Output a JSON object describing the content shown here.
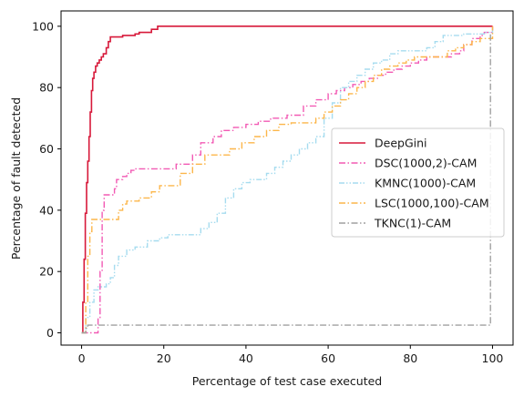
{
  "chart_data": {
    "type": "line",
    "xlabel": "Percentage of test case executed",
    "ylabel": "Percentage of fault detected",
    "xlim": [
      -5,
      105
    ],
    "ylim": [
      -4,
      105
    ],
    "xticks": [
      0,
      20,
      40,
      60,
      80,
      100
    ],
    "yticks": [
      0,
      20,
      40,
      60,
      80,
      100
    ],
    "grid": false,
    "legend_position": "center-right",
    "series": [
      {
        "name": "DeepGini",
        "color": "#d7193a",
        "dash": "solid",
        "points": [
          [
            0,
            0
          ],
          [
            0.3,
            10
          ],
          [
            0.6,
            24
          ],
          [
            0.9,
            39
          ],
          [
            1.2,
            49
          ],
          [
            1.5,
            56
          ],
          [
            1.8,
            64
          ],
          [
            2.1,
            72
          ],
          [
            2.4,
            79
          ],
          [
            2.7,
            83
          ],
          [
            3,
            85
          ],
          [
            3.4,
            87
          ],
          [
            3.8,
            88
          ],
          [
            4.3,
            89
          ],
          [
            4.8,
            90
          ],
          [
            5.3,
            91
          ],
          [
            6,
            93
          ],
          [
            6.5,
            95
          ],
          [
            7,
            96.5
          ],
          [
            9.5,
            96.5
          ],
          [
            10,
            97
          ],
          [
            13,
            97.5
          ],
          [
            14,
            98
          ],
          [
            17,
            99
          ],
          [
            18.5,
            100
          ],
          [
            100,
            100
          ]
        ]
      },
      {
        "name": "DSC(1000,2)-CAM",
        "color": "#f25ab4",
        "dash": "dashdot",
        "points": [
          [
            0,
            0
          ],
          [
            3.5,
            0
          ],
          [
            4,
            5
          ],
          [
            4.5,
            20
          ],
          [
            5,
            40
          ],
          [
            5.5,
            45
          ],
          [
            7,
            45
          ],
          [
            8,
            47
          ],
          [
            8.5,
            50
          ],
          [
            10,
            51
          ],
          [
            11,
            52
          ],
          [
            12,
            53
          ],
          [
            13,
            53.5
          ],
          [
            22,
            53.5
          ],
          [
            23,
            55
          ],
          [
            25,
            55
          ],
          [
            27,
            58
          ],
          [
            29,
            62
          ],
          [
            32,
            64
          ],
          [
            34,
            66
          ],
          [
            37,
            67
          ],
          [
            40,
            68
          ],
          [
            43,
            69
          ],
          [
            46,
            70
          ],
          [
            50,
            71
          ],
          [
            54,
            74
          ],
          [
            57,
            76
          ],
          [
            60,
            78
          ],
          [
            62,
            79
          ],
          [
            64,
            80
          ],
          [
            66,
            81
          ],
          [
            68,
            82
          ],
          [
            70,
            83
          ],
          [
            72,
            84
          ],
          [
            74,
            85
          ],
          [
            76,
            86
          ],
          [
            78,
            87
          ],
          [
            80,
            88
          ],
          [
            82,
            89
          ],
          [
            84,
            90
          ],
          [
            88,
            90
          ],
          [
            90,
            91
          ],
          [
            92,
            92
          ],
          [
            93,
            94
          ],
          [
            95,
            96
          ],
          [
            97,
            97
          ],
          [
            98,
            98
          ],
          [
            100,
            100
          ]
        ]
      },
      {
        "name": "KMNC(1000)-CAM",
        "color": "#a6dcef",
        "dash": "dashdotdot",
        "points": [
          [
            0,
            0
          ],
          [
            1,
            5
          ],
          [
            2,
            10
          ],
          [
            3,
            14
          ],
          [
            4,
            15
          ],
          [
            6,
            16
          ],
          [
            7,
            18
          ],
          [
            8,
            22
          ],
          [
            9,
            25
          ],
          [
            11,
            27
          ],
          [
            13,
            28
          ],
          [
            16,
            30
          ],
          [
            19,
            31
          ],
          [
            21,
            32
          ],
          [
            27,
            32
          ],
          [
            29,
            34
          ],
          [
            31,
            36
          ],
          [
            33,
            39
          ],
          [
            35,
            44
          ],
          [
            37,
            47
          ],
          [
            39,
            49
          ],
          [
            41,
            50
          ],
          [
            45,
            52
          ],
          [
            47,
            54
          ],
          [
            49,
            56
          ],
          [
            51,
            58
          ],
          [
            53,
            60
          ],
          [
            55,
            62
          ],
          [
            57,
            64
          ],
          [
            59,
            70
          ],
          [
            61,
            75
          ],
          [
            63,
            80
          ],
          [
            65,
            82
          ],
          [
            67,
            84
          ],
          [
            69,
            86
          ],
          [
            71,
            88
          ],
          [
            73,
            89
          ],
          [
            75,
            91
          ],
          [
            77,
            92
          ],
          [
            82,
            92
          ],
          [
            84,
            93
          ],
          [
            86,
            95
          ],
          [
            88,
            97
          ],
          [
            93,
            97.5
          ],
          [
            97,
            97.5
          ],
          [
            98,
            98
          ],
          [
            100,
            100
          ]
        ]
      },
      {
        "name": "LSC(1000,100)-CAM",
        "color": "#fcb64a",
        "dash": "dashdot",
        "points": [
          [
            0,
            0
          ],
          [
            1,
            10
          ],
          [
            1.5,
            25
          ],
          [
            2,
            33
          ],
          [
            2.5,
            37
          ],
          [
            8,
            37
          ],
          [
            9,
            40
          ],
          [
            10,
            42
          ],
          [
            11,
            43
          ],
          [
            14,
            44
          ],
          [
            17,
            46
          ],
          [
            19,
            48
          ],
          [
            23,
            48
          ],
          [
            24,
            52
          ],
          [
            27,
            55
          ],
          [
            30,
            58
          ],
          [
            33,
            58
          ],
          [
            36,
            60
          ],
          [
            39,
            62
          ],
          [
            42,
            64
          ],
          [
            45,
            66
          ],
          [
            48,
            68
          ],
          [
            51,
            68.5
          ],
          [
            55,
            68.5
          ],
          [
            57,
            70
          ],
          [
            59,
            72
          ],
          [
            61,
            74
          ],
          [
            63,
            76
          ],
          [
            65,
            78
          ],
          [
            67,
            80
          ],
          [
            69,
            82
          ],
          [
            71,
            84
          ],
          [
            73,
            86
          ],
          [
            75,
            87
          ],
          [
            77,
            88
          ],
          [
            79,
            89
          ],
          [
            81,
            90
          ],
          [
            86,
            90
          ],
          [
            89,
            92
          ],
          [
            91,
            93
          ],
          [
            93,
            94
          ],
          [
            95,
            95
          ],
          [
            97,
            96
          ],
          [
            100,
            100
          ]
        ]
      },
      {
        "name": "TKNC(1)-CAM",
        "color": "#a0a0a0",
        "dash": "dashdot",
        "points": [
          [
            0,
            0
          ],
          [
            1,
            1.5
          ],
          [
            1.5,
            2.5
          ],
          [
            99,
            2.5
          ],
          [
            99.5,
            97.5
          ],
          [
            100,
            97.5
          ]
        ]
      }
    ]
  }
}
